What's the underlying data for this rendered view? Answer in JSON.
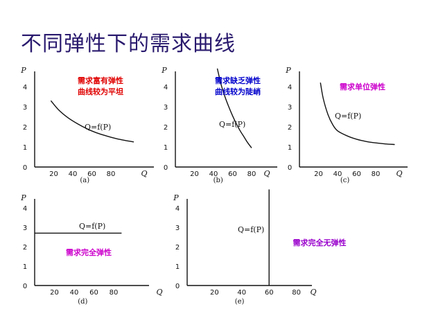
{
  "page": {
    "title": "不同弹性下的需求曲线"
  },
  "chart_data": [
    {
      "id": "a",
      "type": "line",
      "caption": "(a)",
      "xlabel": "Q",
      "ylabel": "P",
      "xlim": [
        0,
        110
      ],
      "ylim": [
        0,
        4.6
      ],
      "xticks": [
        "20",
        "40",
        "60",
        "80"
      ],
      "yticks": [
        "0",
        "1",
        "2",
        "3",
        "4"
      ],
      "curve_label": "Q=f(P)",
      "annotation": [
        "需求富有弹性",
        "曲线较为平坦"
      ],
      "annotation_color": "#e00000",
      "x": [
        17,
        25,
        35,
        45,
        55,
        65,
        75,
        85,
        95,
        104
      ],
      "y": [
        3.3,
        2.85,
        2.45,
        2.15,
        1.9,
        1.7,
        1.55,
        1.42,
        1.32,
        1.25
      ]
    },
    {
      "id": "b",
      "type": "line",
      "caption": "(b)",
      "xlabel": "Q",
      "ylabel": "P",
      "xlim": [
        0,
        100
      ],
      "ylim": [
        0,
        4.6
      ],
      "xticks": [
        "20",
        "40",
        "60",
        "80"
      ],
      "yticks": [
        "0",
        "1",
        "2",
        "3",
        "4"
      ],
      "curve_label": "Q=f(P)",
      "annotation": [
        "需求缺乏弹性",
        "曲线较为陡峭"
      ],
      "annotation_color": "#0000cc",
      "x": [
        44,
        48,
        52,
        56,
        60,
        64,
        68,
        72,
        76,
        80
      ],
      "y": [
        4.9,
        4.1,
        3.5,
        3.0,
        2.55,
        2.15,
        1.8,
        1.5,
        1.2,
        0.95
      ]
    },
    {
      "id": "c",
      "type": "line",
      "caption": "(c)",
      "xlabel": "Q",
      "ylabel": "P",
      "xlim": [
        0,
        108
      ],
      "ylim": [
        0,
        4.6
      ],
      "xticks": [
        "20",
        "40",
        "60",
        "80"
      ],
      "yticks": [
        "0",
        "1",
        "2",
        "3",
        "4"
      ],
      "curve_label": "Q=f(P)",
      "annotation": [
        "需求单位弹性"
      ],
      "annotation_color": "#cc00cc",
      "x": [
        22,
        25,
        30,
        35,
        40,
        50,
        60,
        70,
        80,
        90,
        100
      ],
      "y": [
        4.2,
        3.4,
        2.6,
        2.1,
        1.8,
        1.55,
        1.38,
        1.27,
        1.2,
        1.15,
        1.12
      ]
    },
    {
      "id": "d",
      "type": "line",
      "caption": "(d)",
      "xlabel": "Q",
      "ylabel": "P",
      "xlim": [
        0,
        100
      ],
      "ylim": [
        0,
        4.6
      ],
      "xticks": [
        "20",
        "40",
        "60",
        "80"
      ],
      "yticks": [
        "0",
        "1",
        "2",
        "3",
        "4"
      ],
      "curve_label": "Q=f(P)",
      "annotation": [
        "需求完全弹性"
      ],
      "annotation_color": "#cc00cc",
      "x": [
        0,
        88
      ],
      "y": [
        2.7,
        2.7
      ]
    },
    {
      "id": "e",
      "type": "line",
      "caption": "(e)",
      "xlabel": "Q",
      "ylabel": "P",
      "xlim": [
        0,
        100
      ],
      "ylim": [
        0,
        4.6
      ],
      "xticks": [
        "20",
        "40",
        "60",
        "80"
      ],
      "yticks": [
        "0",
        "1",
        "2",
        "3",
        "4"
      ],
      "curve_label": "Q=f(P)",
      "annotation": [
        "需求完全无弹性"
      ],
      "annotation_color": "#9900cc",
      "x": [
        60,
        60
      ],
      "y": [
        0,
        4.95
      ]
    }
  ]
}
